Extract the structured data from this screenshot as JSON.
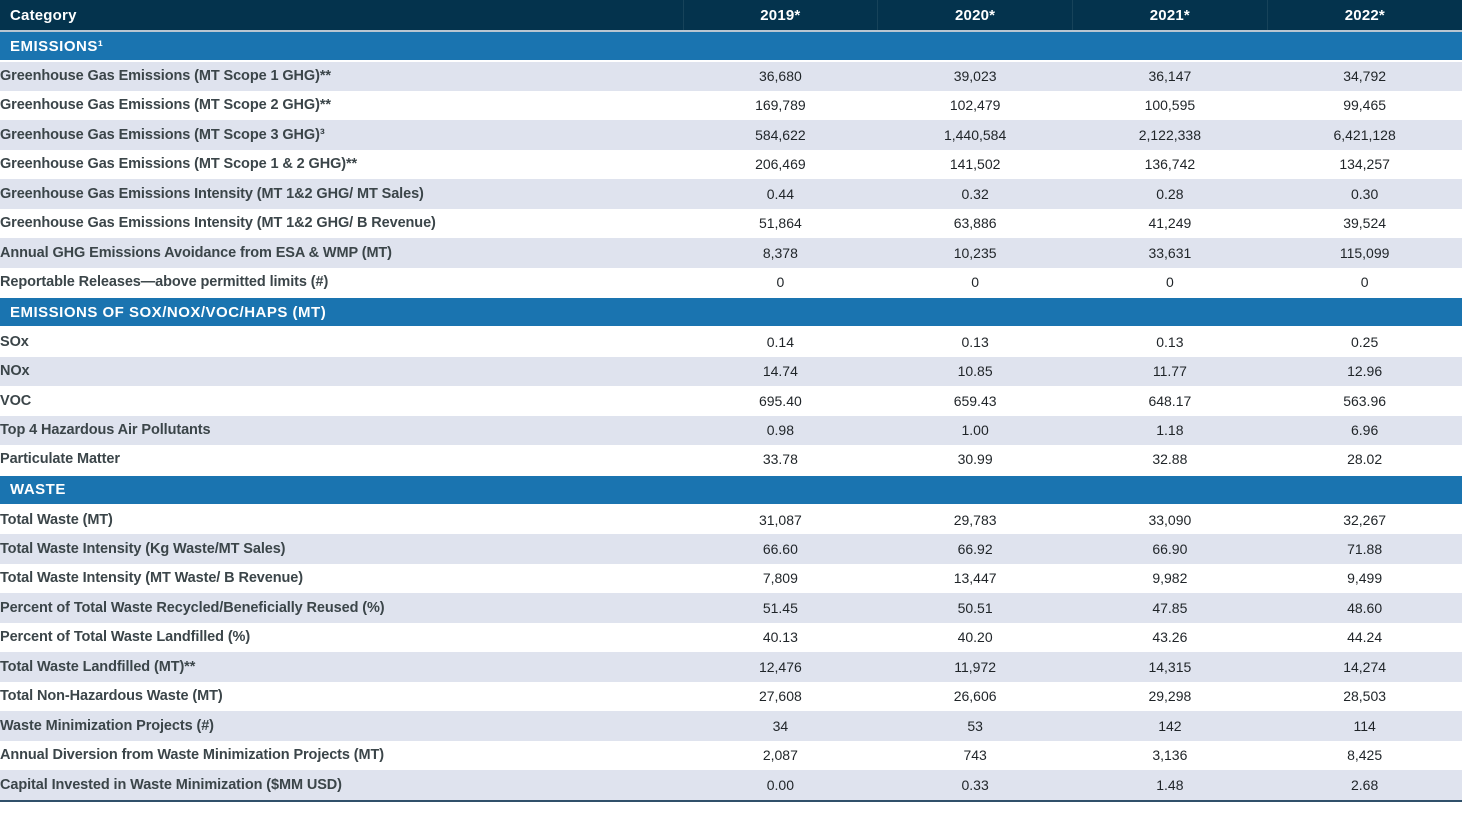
{
  "colors": {
    "header_bg": "#04334d",
    "section_bg": "#1a74b0",
    "row_alt_bg": "#dfe3ee",
    "row_bg": "#ffffff",
    "label_text": "#3b4549",
    "value_text": "#1f2428",
    "bottom_rule": "#30506a"
  },
  "table": {
    "header": {
      "category_label": "Category",
      "years": [
        "2019*",
        "2020*",
        "2021*",
        "2022*"
      ]
    },
    "sections": [
      {
        "title": "EMISSIONS¹",
        "rows": [
          {
            "label": "Greenhouse Gas Emissions (MT Scope 1 GHG)**",
            "values": [
              "36,680",
              "39,023",
              "36,147",
              "34,792"
            ],
            "shade": "light"
          },
          {
            "label": "Greenhouse Gas Emissions (MT Scope 2 GHG)**",
            "values": [
              "169,789",
              "102,479",
              "100,595",
              "99,465"
            ],
            "shade": "white"
          },
          {
            "label": "Greenhouse Gas Emissions (MT Scope 3 GHG)³",
            "values": [
              "584,622",
              "1,440,584",
              "2,122,338",
              "6,421,128"
            ],
            "shade": "light"
          },
          {
            "label": "Greenhouse Gas Emissions (MT Scope 1 & 2 GHG)**",
            "values": [
              "206,469",
              "141,502",
              "136,742",
              "134,257"
            ],
            "shade": "white"
          },
          {
            "label": "Greenhouse Gas Emissions Intensity (MT 1&2 GHG/ MT Sales)",
            "values": [
              "0.44",
              "0.32",
              "0.28",
              "0.30"
            ],
            "shade": "light"
          },
          {
            "label": "Greenhouse Gas Emissions Intensity (MT 1&2 GHG/ B Revenue)",
            "values": [
              "51,864",
              "63,886",
              "41,249",
              "39,524"
            ],
            "shade": "white"
          },
          {
            "label": "Annual GHG Emissions Avoidance from ESA & WMP (MT)",
            "values": [
              "8,378",
              "10,235",
              "33,631",
              "115,099"
            ],
            "shade": "light"
          },
          {
            "label": "Reportable Releases—above permitted limits (#)",
            "values": [
              "0",
              "0",
              "0",
              "0"
            ],
            "shade": "white"
          }
        ]
      },
      {
        "title": "EMISSIONS OF SOX/NOX/VOC/HAPS (MT)",
        "rows": [
          {
            "label": "SOx",
            "values": [
              "0.14",
              "0.13",
              "0.13",
              "0.25"
            ],
            "shade": "white"
          },
          {
            "label": "NOx",
            "values": [
              "14.74",
              "10.85",
              "11.77",
              "12.96"
            ],
            "shade": "light"
          },
          {
            "label": "VOC",
            "values": [
              "695.40",
              "659.43",
              "648.17",
              "563.96"
            ],
            "shade": "white"
          },
          {
            "label": "Top 4 Hazardous Air Pollutants",
            "values": [
              "0.98",
              "1.00",
              "1.18",
              "6.96"
            ],
            "shade": "light"
          },
          {
            "label": "Particulate Matter",
            "values": [
              "33.78",
              "30.99",
              "32.88",
              "28.02"
            ],
            "shade": "white"
          }
        ]
      },
      {
        "title": "WASTE",
        "rows": [
          {
            "label": "Total Waste (MT)",
            "values": [
              "31,087",
              "29,783",
              "33,090",
              "32,267"
            ],
            "shade": "white"
          },
          {
            "label": "Total Waste Intensity (Kg Waste/MT Sales)",
            "values": [
              "66.60",
              "66.92",
              "66.90",
              "71.88"
            ],
            "shade": "light"
          },
          {
            "label": "Total Waste Intensity (MT Waste/ B Revenue)",
            "values": [
              "7,809",
              "13,447",
              "9,982",
              "9,499"
            ],
            "shade": "white"
          },
          {
            "label": "Percent of Total Waste Recycled/Beneficially Reused (%)",
            "values": [
              "51.45",
              "50.51",
              "47.85",
              "48.60"
            ],
            "shade": "light"
          },
          {
            "label": "Percent of Total Waste Landfilled (%)",
            "values": [
              "40.13",
              "40.20",
              "43.26",
              "44.24"
            ],
            "shade": "white"
          },
          {
            "label": "Total Waste Landfilled (MT)**",
            "values": [
              "12,476",
              "11,972",
              "14,315",
              "14,274"
            ],
            "shade": "light"
          },
          {
            "label": "Total Non-Hazardous Waste (MT)",
            "values": [
              "27,608",
              "26,606",
              "29,298",
              "28,503"
            ],
            "shade": "white"
          },
          {
            "label": "Waste Minimization Projects (#)",
            "values": [
              "34",
              "53",
              "142",
              "114"
            ],
            "shade": "light"
          },
          {
            "label": "Annual Diversion from Waste Minimization Projects (MT)",
            "values": [
              "2,087",
              "743",
              "3,136",
              "8,425"
            ],
            "shade": "white"
          },
          {
            "label": "Capital Invested in Waste Minimization ($MM USD)",
            "values": [
              "0.00",
              "0.33",
              "1.48",
              "2.68"
            ],
            "shade": "light"
          }
        ]
      }
    ]
  }
}
